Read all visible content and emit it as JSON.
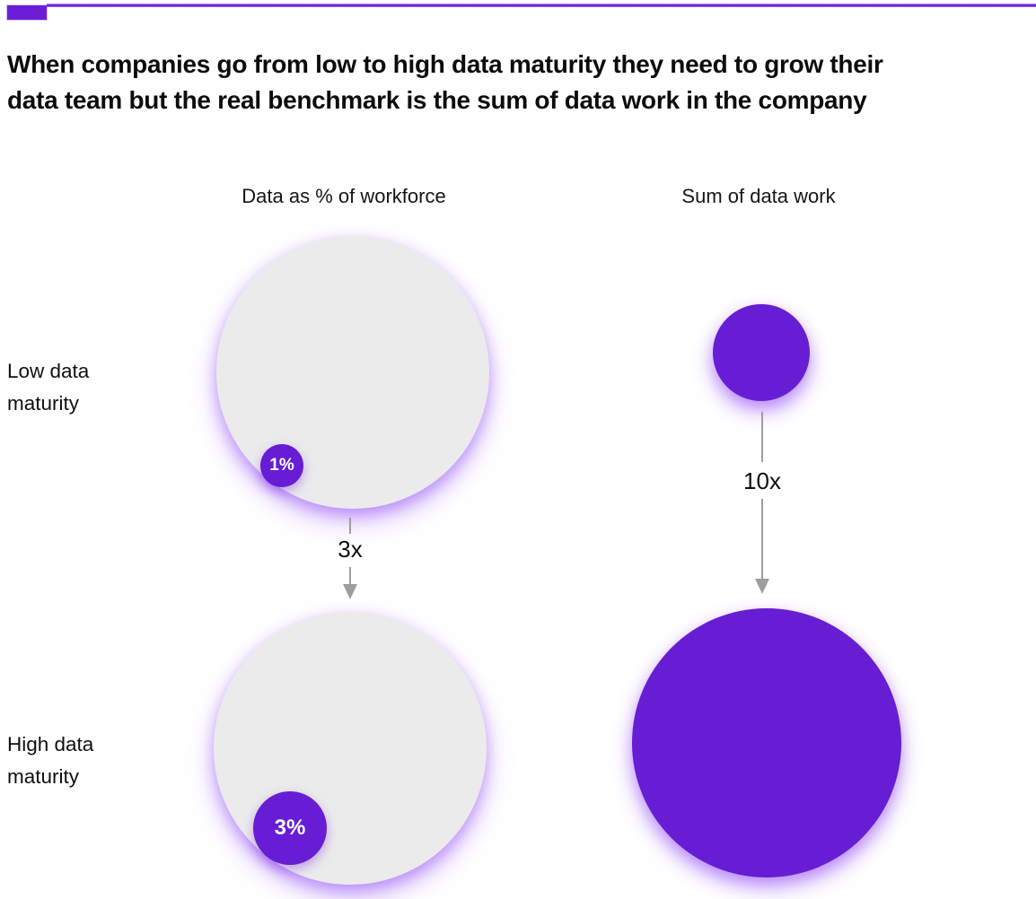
{
  "colors": {
    "accent_purple": "#6C1ED6",
    "circle_purple": "#671DD3",
    "circle_gray": "#EBEBEB",
    "glow_purple": "#8F42F7",
    "arrow_gray": "#9E9E9E"
  },
  "header": {
    "title_line1": "When companies go from low to high data maturity they need to grow their",
    "title_line2": "data team but the real benchmark is the sum of data work in the company"
  },
  "columns": {
    "workforce_label": "Data as % of workforce",
    "datawork_label": "Sum of data work"
  },
  "rows": {
    "low_label": "Low data maturity",
    "high_label": "High data maturity"
  },
  "workforce": {
    "low_value": "1%",
    "high_value": "3%",
    "multiplier": "3x"
  },
  "datawork": {
    "multiplier": "10x"
  }
}
